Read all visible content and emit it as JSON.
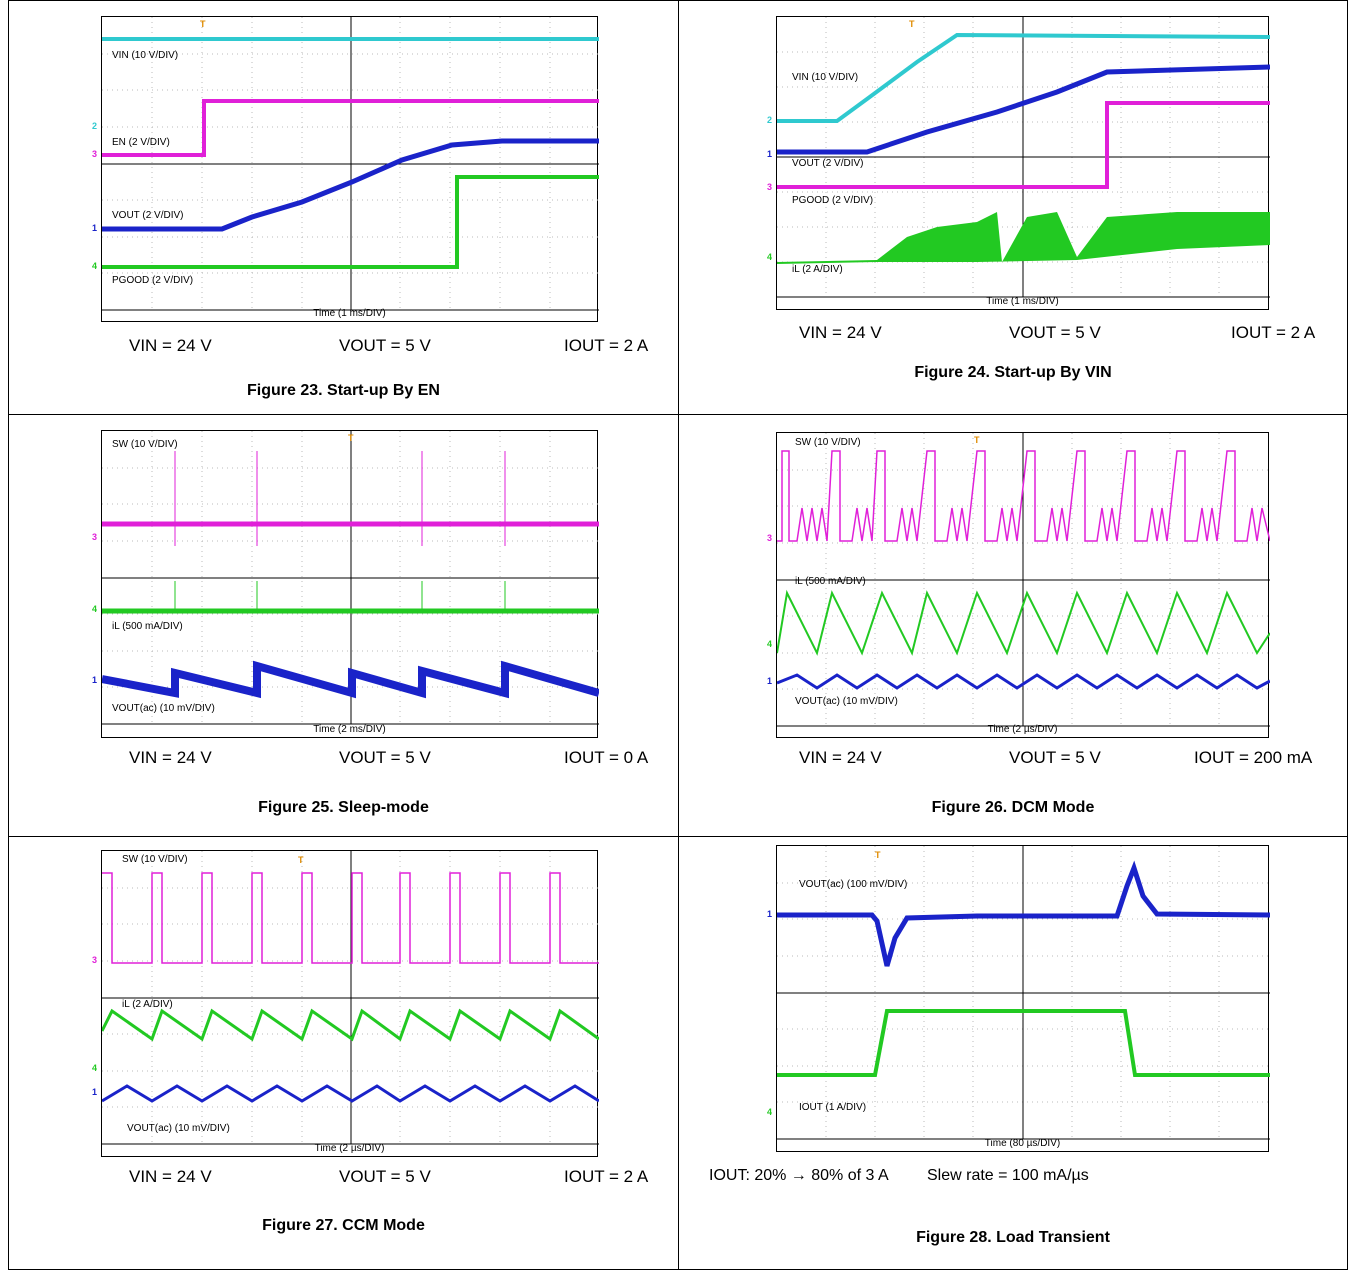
{
  "colors": {
    "cyan": "#2fc9cf",
    "magenta": "#e020d8",
    "blue": "#1a23c9",
    "green": "#22c922",
    "trigger": "#e08b00"
  },
  "figures": [
    {
      "id": "fig23",
      "caption": "Figure 23. Start-up By EN",
      "timebase": "Time (1 ms/DIV)",
      "labels": [
        "VIN (10 V/DIV)",
        "EN (2 V/DIV)",
        "VOUT (2 V/DIV)",
        "PGOOD (2 V/DIV)"
      ],
      "channels": [
        "2",
        "3",
        "1",
        "4"
      ],
      "conditions": [
        "VIN = 24 V",
        "VOUT = 5 V",
        "IOUT = 2 A"
      ]
    },
    {
      "id": "fig24",
      "caption": "Figure 24. Start-up By VIN",
      "timebase": "Time (1 ms/DIV)",
      "labels": [
        "VIN (10 V/DIV)",
        "VOUT (2 V/DIV)",
        "PGOOD (2 V/DIV)",
        "iL (2 A/DIV)"
      ],
      "channels": [
        "2",
        "1",
        "3",
        "4"
      ],
      "conditions": [
        "VIN = 24 V",
        "VOUT = 5 V",
        "IOUT = 2 A"
      ]
    },
    {
      "id": "fig25",
      "caption": "Figure 25. Sleep-mode",
      "timebase": "Time (2 ms/DIV)",
      "labels": [
        "SW (10 V/DIV)",
        "iL (500 mA/DIV)",
        "VOUT(ac) (10 mV/DIV)"
      ],
      "channels": [
        "3",
        "4",
        "1"
      ],
      "conditions": [
        "VIN = 24 V",
        "VOUT = 5 V",
        "IOUT = 0 A"
      ]
    },
    {
      "id": "fig26",
      "caption": "Figure 26. DCM Mode",
      "timebase": "Time (2 µs/DIV)",
      "labels": [
        "SW (10 V/DIV)",
        "iL (500 mA/DIV)",
        "VOUT(ac) (10 mV/DIV)"
      ],
      "channels": [
        "3",
        "4",
        "1"
      ],
      "conditions": [
        "VIN = 24 V",
        "VOUT = 5 V",
        "IOUT = 200 mA"
      ]
    },
    {
      "id": "fig27",
      "caption": "Figure 27. CCM Mode",
      "timebase": "Time (2 µs/DIV)",
      "labels": [
        "SW (10 V/DIV)",
        "iL (2 A/DIV)",
        "VOUT(ac) (10 mV/DIV)"
      ],
      "channels": [
        "3",
        "4",
        "1"
      ],
      "conditions": [
        "VIN = 24 V",
        "VOUT = 5 V",
        "IOUT = 2 A"
      ]
    },
    {
      "id": "fig28",
      "caption": "Figure 28. Load Transient",
      "timebase": "Time (80 µs/DIV)",
      "labels": [
        "VOUT(ac) (100 mV/DIV)",
        "IOUT (1 A/DIV)"
      ],
      "channels": [
        "1",
        "4"
      ],
      "conditions": [
        "IOUT: 20% → 80% of 3 A",
        "Slew rate = 100 mA/µs"
      ]
    }
  ]
}
